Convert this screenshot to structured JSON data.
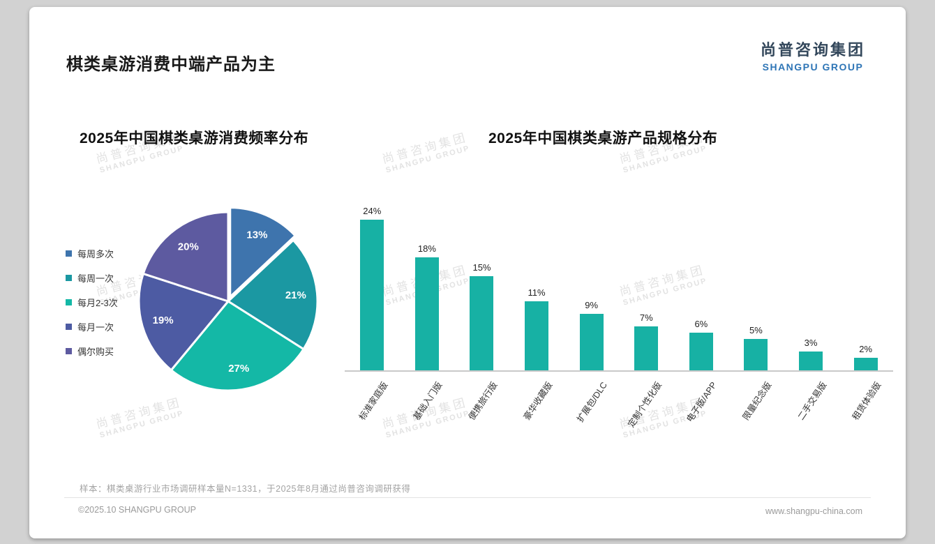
{
  "page": {
    "title": "棋类桌游消费中端产品为主",
    "logo": {
      "cn": "尚普咨询集团",
      "en": "SHANGPU GROUP"
    },
    "watermark": {
      "cn": "尚普咨询集团",
      "en": "SHANGPU GROUP"
    },
    "footnote": "样本：棋类桌游行业市场调研样本量N=1331，于2025年8月通过尚普咨询调研获得",
    "footer_left": "©2025.10 SHANGPU GROUP",
    "footer_right": "www.shangpu-china.com"
  },
  "chart_data": [
    {
      "type": "pie",
      "title": "2025年中国棋类桌游消费频率分布",
      "labels": [
        "每周多次",
        "每周一次",
        "每月2-3次",
        "每月一次",
        "偶尔购买"
      ],
      "values": [
        13,
        21,
        27,
        19,
        20
      ],
      "value_suffix": "%",
      "colors": [
        "#3e74ad",
        "#1b98a2",
        "#14b8a6",
        "#4d5ba3",
        "#5d5aa0"
      ],
      "legend_position": "left",
      "start_angle": 0,
      "direction": "clockwise",
      "explode_index": 0
    },
    {
      "type": "bar",
      "title": "2025年中国棋类桌游产品规格分布",
      "categories": [
        "标准家庭版",
        "基础入门版",
        "便携旅行版",
        "豪华收藏版",
        "扩展包/DLC",
        "定制个性化版",
        "电子版/APP",
        "限量纪念版",
        "二手交易版",
        "租赁体验版"
      ],
      "values": [
        24,
        18,
        15,
        11,
        9,
        7,
        6,
        5,
        3,
        2
      ],
      "value_suffix": "%",
      "bar_color": "#17b1a4",
      "ylim": [
        0,
        26
      ],
      "grid": false,
      "legend": false
    }
  ]
}
